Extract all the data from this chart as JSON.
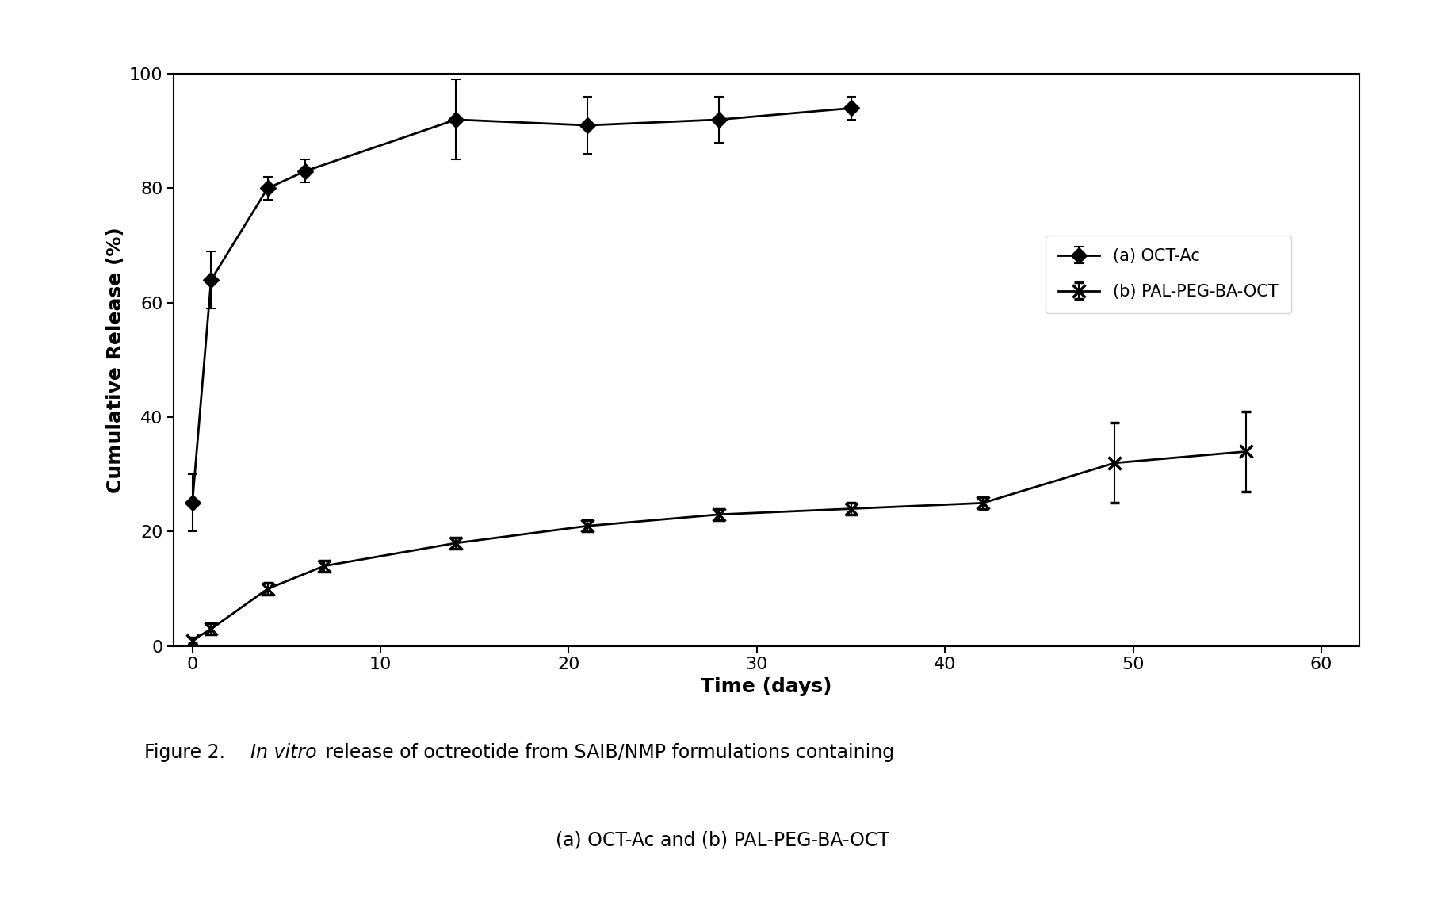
{
  "series_a": {
    "label": "(a) OCT-Ac",
    "x": [
      0,
      1,
      4,
      6,
      14,
      21,
      28,
      35
    ],
    "y": [
      25,
      64,
      80,
      83,
      92,
      91,
      92,
      94
    ],
    "yerr": [
      5,
      5,
      2,
      2,
      7,
      5,
      4,
      2
    ],
    "color": "black",
    "markersize": 10
  },
  "series_b": {
    "label": "(b) PAL-PEG-BA-OCT",
    "x": [
      0,
      1,
      4,
      7,
      14,
      21,
      28,
      35,
      42,
      49,
      56
    ],
    "y": [
      1,
      3,
      10,
      14,
      18,
      21,
      23,
      24,
      25,
      32,
      34
    ],
    "yerr": [
      0.5,
      1,
      1,
      1,
      1,
      1,
      1,
      1,
      1,
      7,
      7
    ],
    "color": "black",
    "markersize": 12
  },
  "xlabel": "Time (days)",
  "ylabel": "Cumulative Release (%)",
  "xlim": [
    -1,
    62
  ],
  "ylim": [
    0,
    100
  ],
  "xticks": [
    0,
    10,
    20,
    30,
    40,
    50,
    60
  ],
  "yticks": [
    0,
    20,
    40,
    60,
    80,
    100
  ],
  "caption_prefix": "Figure 2. ",
  "caption_italic": "In vitro",
  "caption_suffix": " release of octreotide from SAIB/NMP formulations containing",
  "caption_line2": "(a) OCT-Ac and (b) PAL-PEG-BA-OCT"
}
